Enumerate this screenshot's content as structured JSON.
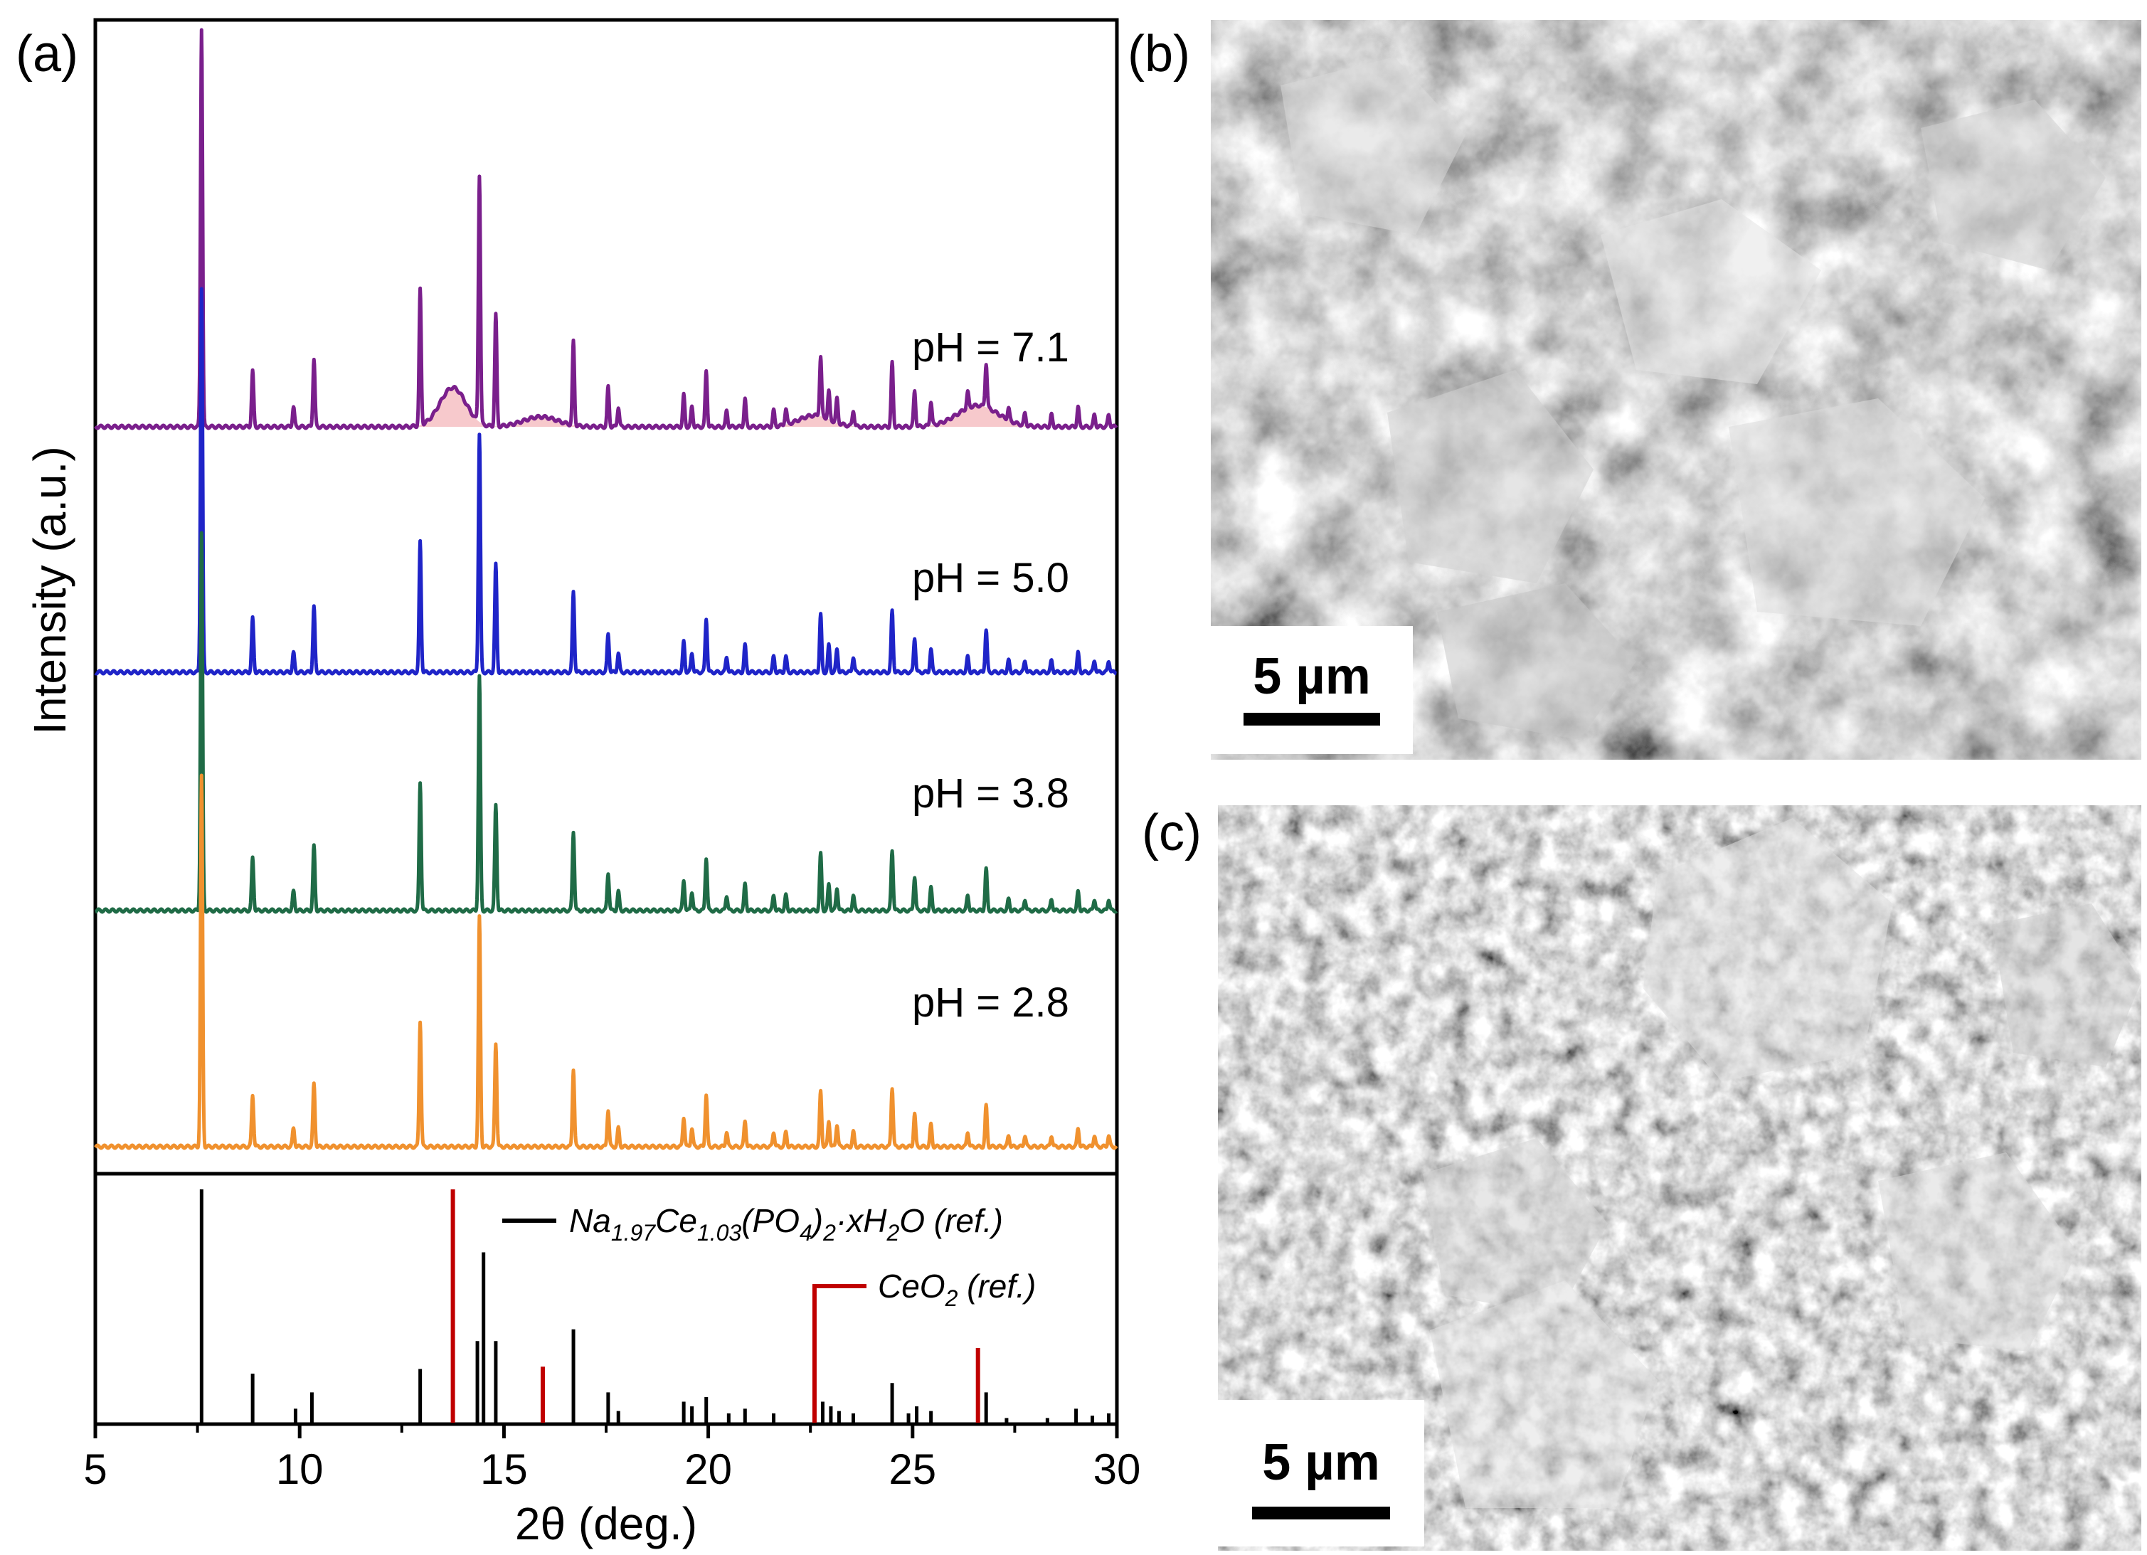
{
  "panels": {
    "a_label": "(a)",
    "b_label": "(b)",
    "c_label": "(c)"
  },
  "chart_data": {
    "type": "line",
    "title": "",
    "xlabel": "2θ (deg.)",
    "ylabel": "Intensity (a.u.)",
    "xlim": [
      5,
      30
    ],
    "xticks": [
      5,
      10,
      15,
      20,
      25,
      30
    ],
    "xtick_labels": [
      "5",
      "10",
      "15",
      "20",
      "25",
      "30"
    ],
    "grid": false,
    "series": [
      {
        "name": "pH = 7.1",
        "color": "#7a1f8c",
        "amorphous_fill": "#f7c9cc"
      },
      {
        "name": "pH = 5.0",
        "color": "#1f24c8"
      },
      {
        "name": "pH = 3.8",
        "color": "#1f6b46"
      },
      {
        "name": "pH = 2.8",
        "color": "#f0912e"
      }
    ],
    "peaks": [
      {
        "two_theta": 7.6,
        "rel_intensity": 100
      },
      {
        "two_theta": 8.85,
        "rel_intensity": 14
      },
      {
        "two_theta": 9.85,
        "rel_intensity": 5
      },
      {
        "two_theta": 10.35,
        "rel_intensity": 17
      },
      {
        "two_theta": 12.95,
        "rel_intensity": 34
      },
      {
        "two_theta": 14.4,
        "rel_intensity": 62
      },
      {
        "two_theta": 14.8,
        "rel_intensity": 28
      },
      {
        "two_theta": 16.7,
        "rel_intensity": 21
      },
      {
        "two_theta": 17.55,
        "rel_intensity": 10
      },
      {
        "two_theta": 17.8,
        "rel_intensity": 5
      },
      {
        "two_theta": 19.4,
        "rel_intensity": 8
      },
      {
        "two_theta": 19.6,
        "rel_intensity": 5
      },
      {
        "two_theta": 19.95,
        "rel_intensity": 14
      },
      {
        "two_theta": 20.45,
        "rel_intensity": 4
      },
      {
        "two_theta": 20.9,
        "rel_intensity": 7
      },
      {
        "two_theta": 21.6,
        "rel_intensity": 4
      },
      {
        "two_theta": 21.9,
        "rel_intensity": 4
      },
      {
        "two_theta": 22.75,
        "rel_intensity": 15
      },
      {
        "two_theta": 22.95,
        "rel_intensity": 7
      },
      {
        "two_theta": 23.15,
        "rel_intensity": 6
      },
      {
        "two_theta": 23.55,
        "rel_intensity": 4
      },
      {
        "two_theta": 24.5,
        "rel_intensity": 16
      },
      {
        "two_theta": 25.05,
        "rel_intensity": 9
      },
      {
        "two_theta": 25.45,
        "rel_intensity": 6
      },
      {
        "two_theta": 26.35,
        "rel_intensity": 4
      },
      {
        "two_theta": 26.8,
        "rel_intensity": 11
      },
      {
        "two_theta": 27.35,
        "rel_intensity": 3
      },
      {
        "two_theta": 27.75,
        "rel_intensity": 3
      },
      {
        "two_theta": 28.4,
        "rel_intensity": 3
      },
      {
        "two_theta": 29.05,
        "rel_intensity": 5
      },
      {
        "two_theta": 29.45,
        "rel_intensity": 3
      },
      {
        "two_theta": 29.8,
        "rel_intensity": 3
      }
    ],
    "reference_patterns": [
      {
        "name": "Na1.97Ce1.03(PO4)2·xH2O (ref.)",
        "color": "#000000",
        "sticks": [
          {
            "two_theta": 7.6,
            "intensity": 100
          },
          {
            "two_theta": 8.85,
            "intensity": 21
          },
          {
            "two_theta": 9.9,
            "intensity": 6
          },
          {
            "two_theta": 10.3,
            "intensity": 13
          },
          {
            "two_theta": 12.95,
            "intensity": 23
          },
          {
            "two_theta": 14.35,
            "intensity": 35
          },
          {
            "two_theta": 14.5,
            "intensity": 73
          },
          {
            "two_theta": 14.8,
            "intensity": 35
          },
          {
            "two_theta": 16.7,
            "intensity": 40
          },
          {
            "two_theta": 17.55,
            "intensity": 13
          },
          {
            "two_theta": 17.8,
            "intensity": 5
          },
          {
            "two_theta": 19.4,
            "intensity": 9
          },
          {
            "two_theta": 19.6,
            "intensity": 7
          },
          {
            "two_theta": 19.95,
            "intensity": 11
          },
          {
            "two_theta": 20.5,
            "intensity": 4
          },
          {
            "two_theta": 20.9,
            "intensity": 6
          },
          {
            "two_theta": 21.6,
            "intensity": 4
          },
          {
            "two_theta": 22.8,
            "intensity": 9
          },
          {
            "two_theta": 23.0,
            "intensity": 7
          },
          {
            "two_theta": 23.2,
            "intensity": 5
          },
          {
            "two_theta": 23.55,
            "intensity": 4
          },
          {
            "two_theta": 24.5,
            "intensity": 17
          },
          {
            "two_theta": 24.9,
            "intensity": 4
          },
          {
            "two_theta": 25.1,
            "intensity": 7
          },
          {
            "two_theta": 25.45,
            "intensity": 5
          },
          {
            "two_theta": 26.8,
            "intensity": 13
          },
          {
            "two_theta": 27.3,
            "intensity": 2
          },
          {
            "two_theta": 28.3,
            "intensity": 2
          },
          {
            "two_theta": 29.0,
            "intensity": 6
          },
          {
            "two_theta": 29.4,
            "intensity": 3
          },
          {
            "two_theta": 29.8,
            "intensity": 4
          }
        ]
      },
      {
        "name": "CeO2 (ref.)",
        "color": "#c00000",
        "sticks": [
          {
            "two_theta": 13.75,
            "intensity": 100
          },
          {
            "two_theta": 15.95,
            "intensity": 24
          },
          {
            "two_theta": 22.6,
            "intensity": 59
          },
          {
            "two_theta": 26.6,
            "intensity": 32
          }
        ]
      }
    ],
    "legend": [
      {
        "label": "Na",
        "sub1": "1.97",
        "mid1": "Ce",
        "sub2": "1.03",
        "mid2": "(PO",
        "sub3": "4",
        "mid3": ")",
        "sub4": "2",
        "tail": "·xH",
        "sub5": "2",
        "end": "O (ref.)",
        "color": "#000000"
      },
      {
        "label": "CeO",
        "sub1": "2",
        "end": " (ref.)",
        "color": "#c00000"
      }
    ],
    "legend_position": "top-right"
  },
  "sem": {
    "b_scale_label": "5 µm",
    "c_scale_label": "5 µm"
  }
}
